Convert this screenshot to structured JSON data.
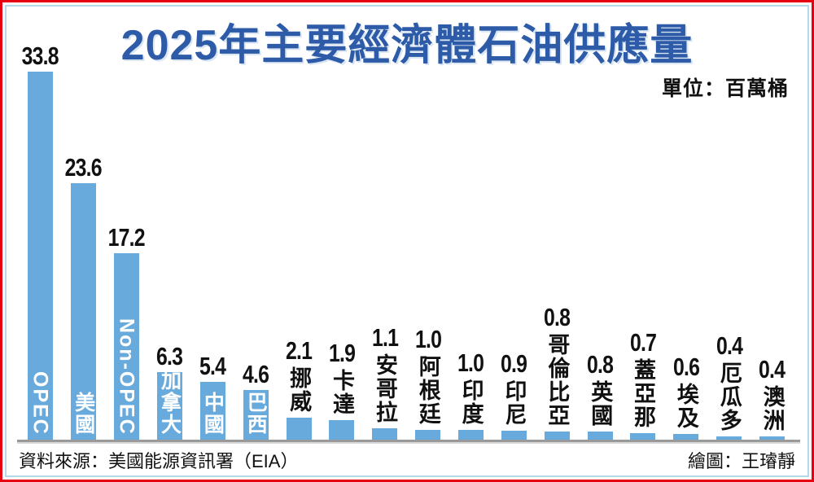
{
  "header": {
    "title": "2025年主要經濟體石油供應量",
    "unit_label": "單位：百萬桶"
  },
  "footer": {
    "source": "資料來源：美國能源資訊署（EIA）",
    "credit": "繪圖：王璿靜"
  },
  "colors": {
    "bar": "#68AADC",
    "title_blue": "#2D5BA8",
    "outer_border": "#E60012",
    "inner_border": "#B5D7EA",
    "axis": "#9A9A9A",
    "value_text": "#111111",
    "inside_label_text": "#FFFFFF"
  },
  "chart_data": {
    "type": "bar",
    "title": "2025年主要經濟體石油供應量",
    "unit": "百萬桶",
    "categories": [
      "OPEC",
      "美國",
      "Non-OPEC",
      "加拿大",
      "中國",
      "巴西",
      "挪威",
      "卡達",
      "安哥拉",
      "阿根廷",
      "印度",
      "印尼",
      "哥倫比亞",
      "英國",
      "蓋亞那",
      "埃及",
      "厄瓜多",
      "澳洲"
    ],
    "values": [
      33.8,
      23.6,
      17.2,
      6.3,
      5.4,
      4.6,
      2.1,
      1.9,
      1.1,
      1.0,
      1.0,
      0.9,
      0.8,
      0.8,
      0.7,
      0.6,
      0.4,
      0.4
    ],
    "value_labels": [
      "33.8",
      "23.6",
      "17.2",
      "6.3",
      "5.4",
      "4.6",
      "2.1",
      "1.9",
      "1.1",
      "1.0",
      "1.0",
      "0.9",
      "0.8",
      "0.8",
      "0.7",
      "0.6",
      "0.4",
      "0.4"
    ],
    "label_inside": [
      true,
      true,
      true,
      true,
      true,
      true,
      false,
      false,
      false,
      false,
      false,
      false,
      false,
      false,
      false,
      false,
      false,
      false
    ],
    "xlabel": "",
    "ylabel": "",
    "ylim": [
      0,
      35
    ],
    "grid": false,
    "legend": "none",
    "bar_orientation": "vertical",
    "value_label_position": "above-bar",
    "category_label_orientation": "vertical"
  }
}
